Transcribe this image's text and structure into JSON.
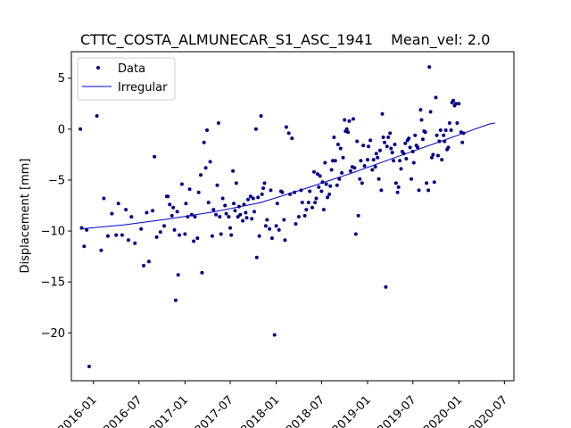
{
  "chart_data": {
    "type": "scatter",
    "title": "CTTC_COSTA_ALMUNECAR_S1_ASC_1941",
    "subtitle": "Mean_vel: 2.0",
    "xlabel": "",
    "ylabel": "Displacement [mm]",
    "xlim": [
      "2015-10-05",
      "2020-08-08"
    ],
    "ylim": [
      -24.7,
      7.6
    ],
    "grid": false,
    "legend_position": "top-left",
    "colors": {
      "data": "#00008b",
      "trend": "#0000cd"
    },
    "x_ticks": [
      "2016-01",
      "2016-07",
      "2017-01",
      "2017-07",
      "2018-01",
      "2018-07",
      "2019-01",
      "2019-07",
      "2020-01",
      "2020-07"
    ],
    "y_ticks": [
      5,
      0,
      -5,
      -10,
      -15,
      -20
    ],
    "y_tick_labels": [
      "5",
      "0",
      "−5",
      "−10",
      "−15",
      "−20"
    ],
    "series": [
      {
        "name": "Data",
        "style": "points",
        "points": [
          [
            "2015-11-10",
            0.0
          ],
          [
            "2015-11-15",
            -9.7
          ],
          [
            "2015-11-25",
            -11.5
          ],
          [
            "2015-12-05",
            -9.9
          ],
          [
            "2015-12-15",
            -23.3
          ],
          [
            "2016-01-15",
            1.3
          ],
          [
            "2016-02-01",
            -11.9
          ],
          [
            "2016-02-12",
            -6.8
          ],
          [
            "2016-02-28",
            -10.5
          ],
          [
            "2016-03-15",
            -8.3
          ],
          [
            "2016-04-01",
            -10.4
          ],
          [
            "2016-04-10",
            -7.3
          ],
          [
            "2016-04-25",
            -10.4
          ],
          [
            "2016-05-10",
            -7.9
          ],
          [
            "2016-05-20",
            -10.9
          ],
          [
            "2016-06-01",
            -8.6
          ],
          [
            "2016-06-15",
            -11.2
          ],
          [
            "2016-07-10",
            -9.8
          ],
          [
            "2016-07-20",
            -13.4
          ],
          [
            "2016-08-01",
            -8.2
          ],
          [
            "2016-08-10",
            -13.0
          ],
          [
            "2016-08-25",
            -8.0
          ],
          [
            "2016-09-01",
            -2.7
          ],
          [
            "2016-09-10",
            -10.6
          ],
          [
            "2016-09-25",
            -10.1
          ],
          [
            "2016-10-10",
            -9.5
          ],
          [
            "2016-10-20",
            -6.6
          ],
          [
            "2016-10-25",
            -6.6
          ],
          [
            "2016-11-01",
            -7.4
          ],
          [
            "2016-11-10",
            -8.5
          ],
          [
            "2016-11-15",
            -7.7
          ],
          [
            "2016-11-20",
            -9.9
          ],
          [
            "2016-11-25",
            -16.8
          ],
          [
            "2016-12-01",
            -8.1
          ],
          [
            "2016-12-05",
            -14.3
          ],
          [
            "2016-12-10",
            -10.4
          ],
          [
            "2016-12-20",
            -5.4
          ],
          [
            "2017-01-01",
            -10.3
          ],
          [
            "2017-01-05",
            -7.3
          ],
          [
            "2017-01-12",
            -8.6
          ],
          [
            "2017-01-20",
            -5.9
          ],
          [
            "2017-01-28",
            -8.4
          ],
          [
            "2017-02-05",
            -11.0
          ],
          [
            "2017-02-10",
            -8.6
          ],
          [
            "2017-02-20",
            -10.7
          ],
          [
            "2017-02-25",
            -6.2
          ],
          [
            "2017-03-05",
            -4.5
          ],
          [
            "2017-03-10",
            -14.1
          ],
          [
            "2017-03-18",
            -1.3
          ],
          [
            "2017-03-25",
            -3.8
          ],
          [
            "2017-03-30",
            -0.1
          ],
          [
            "2017-04-05",
            -7.2
          ],
          [
            "2017-04-12",
            -3.2
          ],
          [
            "2017-04-20",
            -10.5
          ],
          [
            "2017-04-25",
            -7.9
          ],
          [
            "2017-05-05",
            -8.4
          ],
          [
            "2017-05-10",
            -5.5
          ],
          [
            "2017-05-15",
            0.6
          ],
          [
            "2017-05-20",
            -8.6
          ],
          [
            "2017-05-25",
            -10.3
          ],
          [
            "2017-06-01",
            -6.8
          ],
          [
            "2017-06-10",
            -7.5
          ],
          [
            "2017-06-15",
            -8.3
          ],
          [
            "2017-06-25",
            -8.6
          ],
          [
            "2017-07-01",
            -9.7
          ],
          [
            "2017-07-05",
            -10.4
          ],
          [
            "2017-07-12",
            -4.1
          ],
          [
            "2017-07-15",
            -7.3
          ],
          [
            "2017-07-20",
            -8.0
          ],
          [
            "2017-07-25",
            -5.3
          ],
          [
            "2017-08-01",
            -8.6
          ],
          [
            "2017-08-05",
            -7.6
          ],
          [
            "2017-08-10",
            -8.4
          ],
          [
            "2017-08-20",
            -9.0
          ],
          [
            "2017-08-25",
            -7.4
          ],
          [
            "2017-09-01",
            -8.2
          ],
          [
            "2017-09-05",
            -8.7
          ],
          [
            "2017-09-10",
            -6.9
          ],
          [
            "2017-09-20",
            -6.6
          ],
          [
            "2017-09-25",
            -8.8
          ],
          [
            "2017-10-01",
            -6.8
          ],
          [
            "2017-10-05",
            -8.1
          ],
          [
            "2017-10-12",
            0.0
          ],
          [
            "2017-10-15",
            -12.6
          ],
          [
            "2017-10-20",
            -6.7
          ],
          [
            "2017-10-25",
            -10.5
          ],
          [
            "2017-11-01",
            1.3
          ],
          [
            "2017-11-05",
            -6.4
          ],
          [
            "2017-11-10",
            -5.8
          ],
          [
            "2017-11-15",
            -5.3
          ],
          [
            "2017-11-20",
            -9.5
          ],
          [
            "2017-11-25",
            -8.9
          ],
          [
            "2017-12-05",
            -9.8
          ],
          [
            "2017-12-10",
            -6.0
          ],
          [
            "2017-12-15",
            -10.7
          ],
          [
            "2017-12-25",
            -20.2
          ],
          [
            "2018-01-01",
            -9.5
          ],
          [
            "2018-01-05",
            -7.3
          ],
          [
            "2018-01-12",
            -9.9
          ],
          [
            "2018-01-20",
            -6.1
          ],
          [
            "2018-01-25",
            -6.2
          ],
          [
            "2018-02-01",
            -8.9
          ],
          [
            "2018-02-05",
            -10.9
          ],
          [
            "2018-02-10",
            0.2
          ],
          [
            "2018-02-20",
            -0.4
          ],
          [
            "2018-02-25",
            -6.4
          ],
          [
            "2018-03-05",
            -0.9
          ],
          [
            "2018-03-15",
            -6.2
          ],
          [
            "2018-03-20",
            -9.3
          ],
          [
            "2018-04-01",
            -8.6
          ],
          [
            "2018-04-10",
            -6.0
          ],
          [
            "2018-04-15",
            -7.2
          ],
          [
            "2018-04-25",
            -8.5
          ],
          [
            "2018-05-01",
            -7.9
          ],
          [
            "2018-05-10",
            -7.2
          ],
          [
            "2018-05-15",
            -6.1
          ],
          [
            "2018-05-25",
            -7.7
          ],
          [
            "2018-06-01",
            -4.2
          ],
          [
            "2018-06-05",
            -7.2
          ],
          [
            "2018-06-10",
            -6.8
          ],
          [
            "2018-06-15",
            -4.4
          ],
          [
            "2018-06-20",
            -5.7
          ],
          [
            "2018-06-25",
            -4.6
          ],
          [
            "2018-07-01",
            -6.1
          ],
          [
            "2018-07-05",
            -5.2
          ],
          [
            "2018-07-10",
            -7.9
          ],
          [
            "2018-07-15",
            -3.3
          ],
          [
            "2018-07-20",
            -5.4
          ],
          [
            "2018-07-25",
            -6.7
          ],
          [
            "2018-08-01",
            -6.4
          ],
          [
            "2018-08-05",
            -5.6
          ],
          [
            "2018-08-10",
            -4.0
          ],
          [
            "2018-08-15",
            -3.1
          ],
          [
            "2018-08-20",
            -0.8
          ],
          [
            "2018-08-25",
            -3.1
          ],
          [
            "2018-09-01",
            -5.5
          ],
          [
            "2018-09-05",
            -1.5
          ],
          [
            "2018-09-10",
            -4.9
          ],
          [
            "2018-09-15",
            -1.9
          ],
          [
            "2018-09-20",
            -4.3
          ],
          [
            "2018-09-25",
            -2.8
          ],
          [
            "2018-10-01",
            0.9
          ],
          [
            "2018-10-05",
            -0.2
          ],
          [
            "2018-10-10",
            0.0
          ],
          [
            "2018-10-15",
            -0.3
          ],
          [
            "2018-10-20",
            0.8
          ],
          [
            "2018-10-25",
            -4.1
          ],
          [
            "2018-11-01",
            -3.7
          ],
          [
            "2018-11-05",
            1.0
          ],
          [
            "2018-11-10",
            -3.8
          ],
          [
            "2018-11-15",
            -10.3
          ],
          [
            "2018-11-20",
            -1.2
          ],
          [
            "2018-11-25",
            -8.5
          ],
          [
            "2018-12-01",
            -4.9
          ],
          [
            "2018-12-05",
            -3.1
          ],
          [
            "2018-12-10",
            -5.3
          ],
          [
            "2018-12-15",
            -1.6
          ],
          [
            "2018-12-20",
            -3.6
          ],
          [
            "2019-01-01",
            -3.0
          ],
          [
            "2019-01-05",
            -1.7
          ],
          [
            "2019-01-12",
            -1.1
          ],
          [
            "2019-01-20",
            -4.0
          ],
          [
            "2019-01-25",
            -3.0
          ],
          [
            "2019-02-01",
            -3.7
          ],
          [
            "2019-02-05",
            -2.4
          ],
          [
            "2019-02-10",
            -2.8
          ],
          [
            "2019-02-15",
            -4.9
          ],
          [
            "2019-02-20",
            -2.1
          ],
          [
            "2019-02-25",
            -6.0
          ],
          [
            "2019-03-01",
            1.5
          ],
          [
            "2019-03-05",
            -0.8
          ],
          [
            "2019-03-10",
            -1.3
          ],
          [
            "2019-03-15",
            -15.5
          ],
          [
            "2019-03-20",
            -1.7
          ],
          [
            "2019-03-25",
            -0.8
          ],
          [
            "2019-04-01",
            -0.4
          ],
          [
            "2019-04-05",
            -1.9
          ],
          [
            "2019-04-10",
            -2.3
          ],
          [
            "2019-04-15",
            -3.1
          ],
          [
            "2019-04-20",
            -1.5
          ],
          [
            "2019-04-25",
            -5.3
          ],
          [
            "2019-05-01",
            -6.2
          ],
          [
            "2019-05-05",
            -5.7
          ],
          [
            "2019-05-10",
            -3.1
          ],
          [
            "2019-05-15",
            -3.9
          ],
          [
            "2019-05-20",
            -2.2
          ],
          [
            "2019-05-25",
            -2.4
          ],
          [
            "2019-06-01",
            -1.4
          ],
          [
            "2019-06-05",
            -2.9
          ],
          [
            "2019-06-10",
            -1.1
          ],
          [
            "2019-06-15",
            -0.9
          ],
          [
            "2019-06-20",
            -1.8
          ],
          [
            "2019-06-25",
            -4.9
          ],
          [
            "2019-07-01",
            -2.2
          ],
          [
            "2019-07-05",
            -3.3
          ],
          [
            "2019-07-10",
            -0.6
          ],
          [
            "2019-07-15",
            -1.6
          ],
          [
            "2019-07-20",
            -1.8
          ],
          [
            "2019-07-25",
            -6.0
          ],
          [
            "2019-08-01",
            1.9
          ],
          [
            "2019-08-05",
            0.9
          ],
          [
            "2019-08-10",
            -1.0
          ],
          [
            "2019-08-15",
            -0.2
          ],
          [
            "2019-08-20",
            -0.3
          ],
          [
            "2019-08-25",
            -5.3
          ],
          [
            "2019-09-01",
            -6.0
          ],
          [
            "2019-09-05",
            6.1
          ],
          [
            "2019-09-10",
            1.7
          ],
          [
            "2019-09-15",
            -2.8
          ],
          [
            "2019-09-20",
            -2.5
          ],
          [
            "2019-09-25",
            -5.2
          ],
          [
            "2019-10-01",
            3.1
          ],
          [
            "2019-10-05",
            -0.6
          ],
          [
            "2019-10-10",
            -2.6
          ],
          [
            "2019-10-15",
            -1.2
          ],
          [
            "2019-10-20",
            -0.1
          ],
          [
            "2019-10-25",
            -3.0
          ],
          [
            "2019-11-01",
            -0.6
          ],
          [
            "2019-11-05",
            -1.2
          ],
          [
            "2019-11-10",
            -0.1
          ],
          [
            "2019-11-15",
            -2.0
          ],
          [
            "2019-11-20",
            -1.8
          ],
          [
            "2019-11-25",
            0.6
          ],
          [
            "2019-12-01",
            -0.1
          ],
          [
            "2019-12-05",
            2.6
          ],
          [
            "2019-12-10",
            2.8
          ],
          [
            "2019-12-15",
            2.3
          ],
          [
            "2019-12-20",
            2.5
          ],
          [
            "2019-12-25",
            0.6
          ],
          [
            "2020-01-01",
            2.5
          ],
          [
            "2020-01-10",
            -0.3
          ],
          [
            "2020-01-15",
            -1.3
          ],
          [
            "2020-01-20",
            -0.4
          ]
        ]
      },
      {
        "name": "Irregular",
        "style": "line",
        "points": [
          [
            "2015-11-10",
            -9.8
          ],
          [
            "2016-05-01",
            -9.4
          ],
          [
            "2016-11-01",
            -8.8
          ],
          [
            "2017-05-01",
            -8.1
          ],
          [
            "2017-11-01",
            -7.2
          ],
          [
            "2018-05-01",
            -5.8
          ],
          [
            "2018-11-01",
            -4.3
          ],
          [
            "2019-05-01",
            -2.7
          ],
          [
            "2019-11-01",
            -1.1
          ],
          [
            "2020-05-01",
            0.5
          ],
          [
            "2020-05-25",
            0.6
          ]
        ]
      }
    ]
  }
}
